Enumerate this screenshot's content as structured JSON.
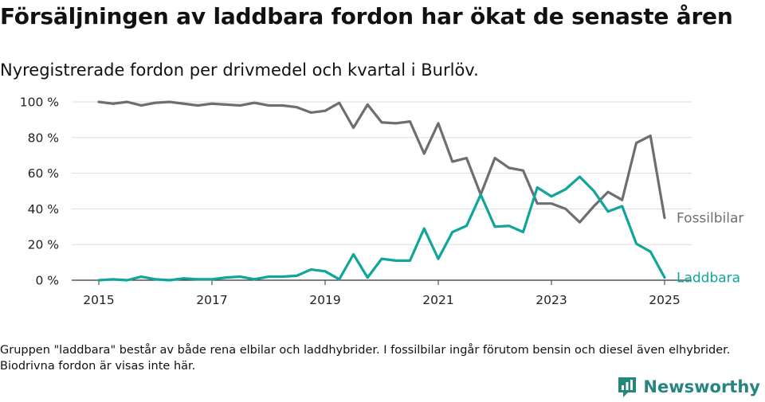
{
  "title": "Försäljningen av laddbara fordon har ökat de senaste åren",
  "subtitle": "Nyregistrerade fordon per drivmedel och kvartal i Burlöv.",
  "footnote": "Gruppen \"laddbara\" består av både rena elbilar och laddhybrider. I fossilbilar ingår förutom bensin och diesel även elhybrider. Biodrivna fordon är visas inte här.",
  "brand": {
    "name": "Newsworthy",
    "color": "#25867d"
  },
  "chart_data": {
    "type": "line",
    "x_start": "2015-01",
    "x_step": "quarter",
    "xlim": [
      2015,
      2025.2
    ],
    "ylim": [
      0,
      100
    ],
    "y_ticks": [
      0,
      20,
      40,
      60,
      80,
      100
    ],
    "y_tick_labels": [
      "0 %",
      "20 %",
      "40 %",
      "60 %",
      "80 %",
      "100 %"
    ],
    "x_ticks": [
      2015,
      2017,
      2019,
      2021,
      2023,
      2025
    ],
    "x_tick_labels": [
      "2015",
      "2017",
      "2019",
      "2021",
      "2023",
      "2025"
    ],
    "grid": "horizontal",
    "legend": "end-labels",
    "series": [
      {
        "name": "Fossilbilar",
        "color": "#6e6d72",
        "values": [
          100,
          99,
          100,
          98,
          99.5,
          100,
          99,
          98,
          99,
          98.5,
          98,
          99.5,
          98,
          98,
          97,
          94,
          95,
          99.5,
          85.5,
          98.5,
          88.5,
          88,
          89,
          71,
          88,
          66.5,
          68.5,
          48,
          68.5,
          63,
          61.5,
          43,
          43,
          40,
          32.5,
          41.5,
          49.5,
          45,
          77,
          81,
          35
        ]
      },
      {
        "name": "Laddbara",
        "color": "#0fa59a",
        "values": [
          0,
          0.5,
          0,
          2,
          0.5,
          0,
          1,
          0.5,
          0.5,
          1.5,
          2,
          0.5,
          2,
          2,
          2.5,
          6,
          5,
          0.5,
          14.5,
          1.5,
          12,
          11,
          11,
          29,
          12,
          27,
          30.5,
          48,
          30,
          30.5,
          27,
          52,
          47,
          51,
          58,
          50,
          38.5,
          41.5,
          20.5,
          16,
          1.5
        ]
      }
    ]
  }
}
